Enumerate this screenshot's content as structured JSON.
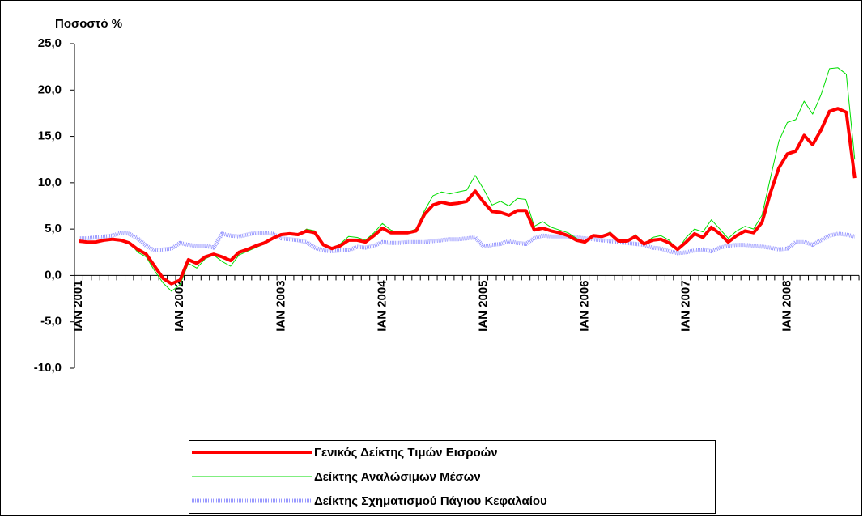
{
  "chart_data": {
    "type": "line",
    "ylabel": "Ποσοστό %",
    "categories": [
      "ΙΑΝ 2001",
      null,
      null,
      null,
      null,
      null,
      null,
      null,
      null,
      null,
      null,
      null,
      "ΙΑΝ 2002",
      null,
      null,
      null,
      null,
      null,
      null,
      null,
      null,
      null,
      null,
      null,
      "ΙΑΝ 2003",
      null,
      null,
      null,
      null,
      null,
      null,
      null,
      null,
      null,
      null,
      null,
      "ΙΑΝ 2004",
      null,
      null,
      null,
      null,
      null,
      null,
      null,
      null,
      null,
      null,
      null,
      "ΙΑΝ 2005",
      null,
      null,
      null,
      null,
      null,
      null,
      null,
      null,
      null,
      null,
      null,
      "ΙΑΝ 2006",
      null,
      null,
      null,
      null,
      null,
      null,
      null,
      null,
      null,
      null,
      null,
      "ΙΑΝ 2007",
      null,
      null,
      null,
      null,
      null,
      null,
      null,
      null,
      null,
      null,
      null,
      "ΙΑΝ 2008",
      null,
      null,
      null,
      null,
      null,
      null,
      null,
      null
    ],
    "series": [
      {
        "name": "Γενικός Δείκτης Τιμών Εισροών",
        "color": "#ff0000",
        "values": [
          3.7,
          3.6,
          3.6,
          3.8,
          3.9,
          3.8,
          3.5,
          2.8,
          2.3,
          1.0,
          -0.3,
          -0.9,
          -0.5,
          1.7,
          1.3,
          2.0,
          2.3,
          2.0,
          1.6,
          2.5,
          2.8,
          3.2,
          3.5,
          4.0,
          4.4,
          4.5,
          4.4,
          4.8,
          4.6,
          3.3,
          2.9,
          3.2,
          3.8,
          3.8,
          3.6,
          4.3,
          5.1,
          4.6,
          4.6,
          4.6,
          4.8,
          6.6,
          7.6,
          7.9,
          7.7,
          7.8,
          8.0,
          9.1,
          7.9,
          6.9,
          6.8,
          6.5,
          7.0,
          7.0,
          4.9,
          5.1,
          4.8,
          4.6,
          4.3,
          3.8,
          3.6,
          4.3,
          4.2,
          4.5,
          3.7,
          3.7,
          4.2,
          3.4,
          3.8,
          3.9,
          3.5,
          2.8,
          3.6,
          4.5,
          4.1,
          5.2,
          4.5,
          3.6,
          4.3,
          4.8,
          4.6,
          5.7,
          8.9,
          11.6,
          13.1,
          13.4,
          15.1,
          14.1,
          15.7,
          17.7,
          18.0,
          17.6,
          10.5
        ]
      },
      {
        "name": "Δείκτης Αναλώσιμων Μέσων",
        "color": "#00dd00",
        "values": [
          3.8,
          3.5,
          3.7,
          3.9,
          3.9,
          3.7,
          3.6,
          2.5,
          2.0,
          0.5,
          -0.8,
          -1.7,
          -1.0,
          1.3,
          0.8,
          1.8,
          2.2,
          1.5,
          1.0,
          2.2,
          2.6,
          3.0,
          3.4,
          4.0,
          4.4,
          4.6,
          4.3,
          5.0,
          4.8,
          3.3,
          2.8,
          3.4,
          4.2,
          4.1,
          3.8,
          4.6,
          5.6,
          4.9,
          4.6,
          4.7,
          5.0,
          7.0,
          8.6,
          9.0,
          8.8,
          9.0,
          9.2,
          10.8,
          9.3,
          7.6,
          8.0,
          7.5,
          8.3,
          8.2,
          5.3,
          5.8,
          5.2,
          4.9,
          4.6,
          4.0,
          3.6,
          4.4,
          4.2,
          4.7,
          3.6,
          3.7,
          4.4,
          3.3,
          4.1,
          4.3,
          3.8,
          2.7,
          4.1,
          5.0,
          4.7,
          6.0,
          5.0,
          4.0,
          4.8,
          5.3,
          5.0,
          6.5,
          10.5,
          14.5,
          16.5,
          16.8,
          18.8,
          17.4,
          19.5,
          22.3,
          22.4,
          21.7,
          12.5
        ]
      },
      {
        "name": "Δείκτης Σχηματισμού Πάγιου Κεφαλαίου",
        "color": "#9999ff",
        "values": [
          4.0,
          4.0,
          4.1,
          4.2,
          4.3,
          4.6,
          4.5,
          4.0,
          3.2,
          2.7,
          2.8,
          2.9,
          3.5,
          3.3,
          3.2,
          3.2,
          3.0,
          4.5,
          4.3,
          4.2,
          4.4,
          4.6,
          4.6,
          4.5,
          4.0,
          3.9,
          3.8,
          3.6,
          3.0,
          2.7,
          2.6,
          2.7,
          2.7,
          3.1,
          3.0,
          3.2,
          3.6,
          3.5,
          3.5,
          3.6,
          3.6,
          3.6,
          3.7,
          3.8,
          3.9,
          3.9,
          4.0,
          4.1,
          3.1,
          3.3,
          3.4,
          3.7,
          3.5,
          3.4,
          4.0,
          4.3,
          4.2,
          4.2,
          4.2,
          4.1,
          4.0,
          3.9,
          3.8,
          3.7,
          3.6,
          3.5,
          3.4,
          3.3,
          3.0,
          2.9,
          2.6,
          2.4,
          2.5,
          2.7,
          2.8,
          2.6,
          3.0,
          3.2,
          3.3,
          3.3,
          3.2,
          3.1,
          3.0,
          2.8,
          2.9,
          3.6,
          3.6,
          3.3,
          3.8,
          4.3,
          4.5,
          4.4,
          4.2
        ]
      }
    ],
    "ylim": [
      -10,
      25
    ],
    "yticks": [
      {
        "value": -10,
        "label": "-10,0"
      },
      {
        "value": -5,
        "label": "-5,0"
      },
      {
        "value": 0,
        "label": "0,0"
      },
      {
        "value": 5,
        "label": "5,0"
      },
      {
        "value": 10,
        "label": "10,0"
      },
      {
        "value": 15,
        "label": "15,0"
      },
      {
        "value": 20,
        "label": "20,0"
      },
      {
        "value": 25,
        "label": "25,0"
      }
    ],
    "grid": false,
    "legend": "bottom"
  }
}
